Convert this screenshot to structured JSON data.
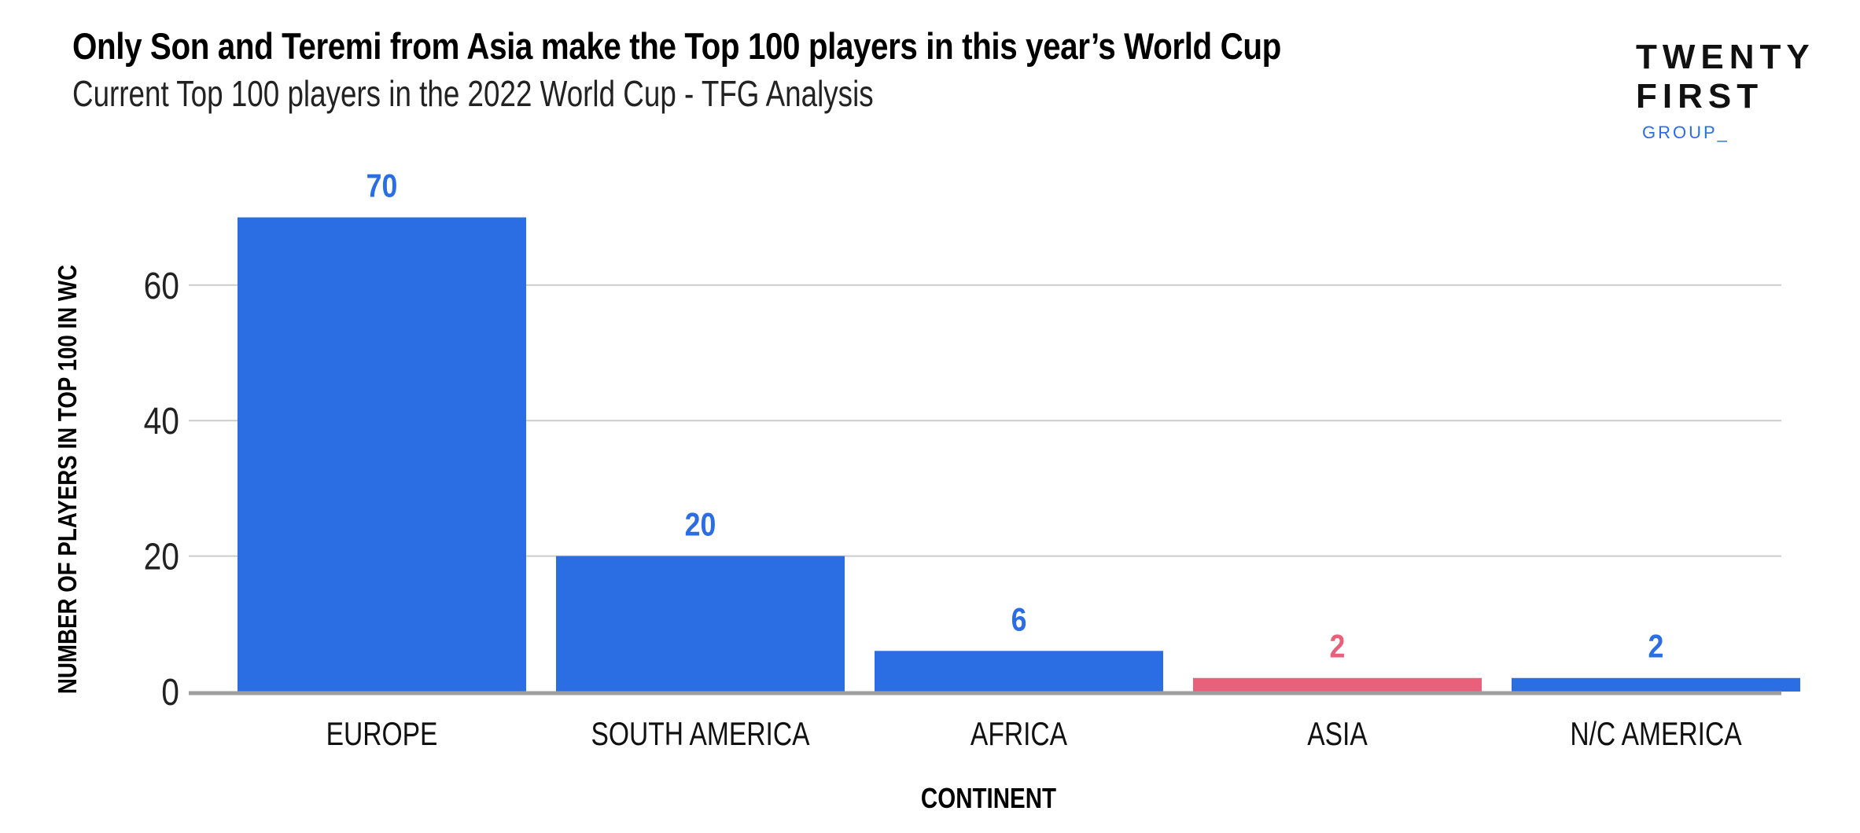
{
  "header": {
    "title": "Only Son and Teremi from Asia make the Top 100 players in this year’s World Cup",
    "subtitle": "Current Top 100 players in the 2022 World Cup - TFG Analysis"
  },
  "logo": {
    "line1": "TWENTY",
    "line2": "FIRST",
    "line3": "GROUP_"
  },
  "colors": {
    "primary_bar": "#2B6DE3",
    "highlight_bar": "#E8607A",
    "gridline": "#CCCCCC",
    "baseline": "#9E9E9E",
    "logo_accent": "#2B6DE3"
  },
  "chart_data": {
    "type": "bar",
    "categories": [
      "EUROPE",
      "SOUTH AMERICA",
      "AFRICA",
      "ASIA",
      "N/C AMERICA"
    ],
    "values": [
      70,
      20,
      6,
      2,
      2
    ],
    "data_labels": [
      "70",
      "20",
      "6",
      "2",
      "2"
    ],
    "highlight": [
      "ASIA"
    ],
    "xlabel": "CONTINENT",
    "ylabel": "NUMBER OF PLAYERS IN TOP 100 IN WC",
    "ylim": [
      0,
      70
    ],
    "yticks": [
      0,
      20,
      40,
      60
    ],
    "grid": true,
    "legend": "none"
  }
}
